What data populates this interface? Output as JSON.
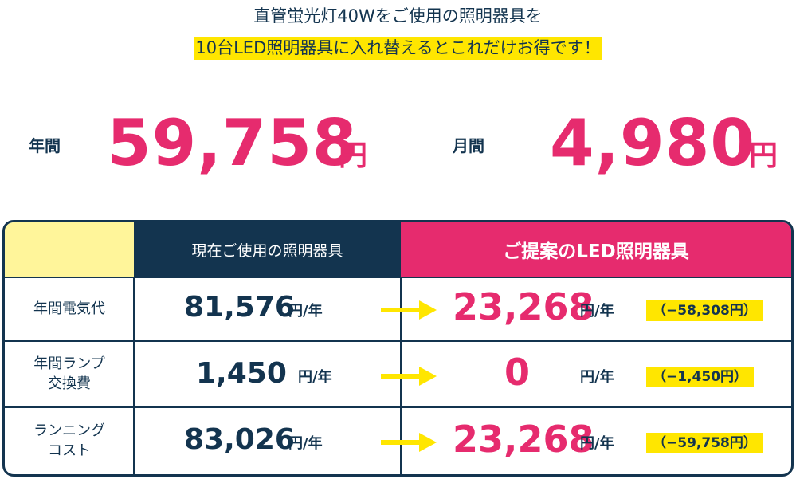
{
  "header": {
    "line1": "直管蛍光灯40Wをご使用の照明器具を",
    "line2": "10台LED照明器具に入れ替えるとこれだけお得です！"
  },
  "savings": {
    "annual_label": "年間",
    "annual_value": "59,758",
    "monthly_label": "月間",
    "monthly_value": "4,980",
    "unit": "円"
  },
  "table": {
    "header_current": "現在ご使用の照明器具",
    "header_led": "ご提案のLED照明器具",
    "rows": [
      {
        "label": "年間電気代",
        "current": "81,576",
        "led": "23,268",
        "diff": "（−58,308円）"
      },
      {
        "label": "年間ランプ\n交換費",
        "current": "1,450",
        "led": "0",
        "diff": "（−1,450円）"
      },
      {
        "label": "ランニング\nコスト",
        "current": "83,026",
        "led": "23,268",
        "diff": "（−59,758円）"
      }
    ],
    "unit": "円/年"
  },
  "colors": {
    "navy": "#13344f",
    "pink": "#e62b6e",
    "yellow": "#ffe600",
    "pale_yellow": "#fff59a"
  },
  "icons": {
    "arrow": "arrow-right-icon"
  }
}
